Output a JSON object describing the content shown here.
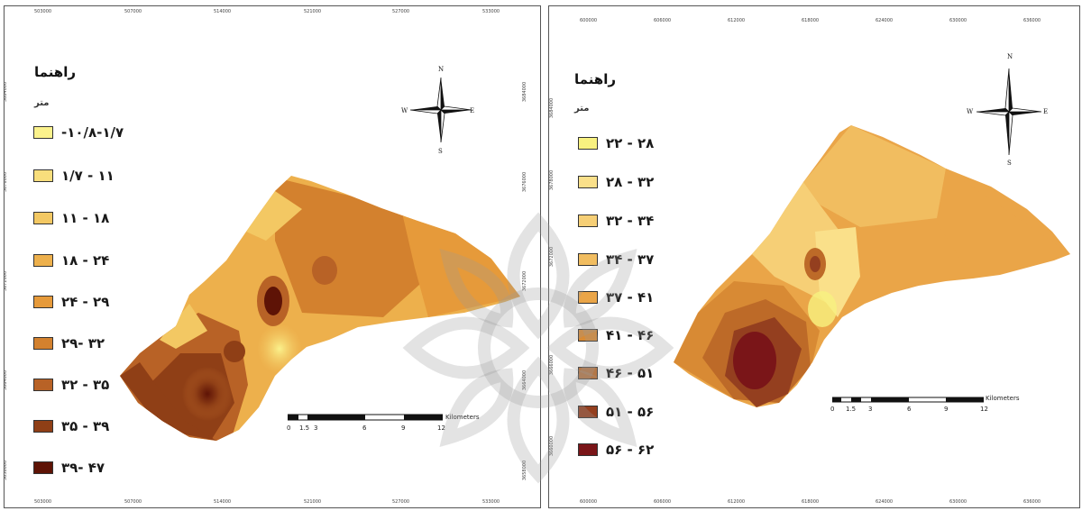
{
  "panels": [
    {
      "id": "left",
      "legend_title": "راهنما",
      "unit": "متر",
      "legend": [
        {
          "label": "-۱۰/۸-۱/۷",
          "color": "#fbf28c"
        },
        {
          "label": "۱/۷ - ۱۱",
          "color": "#f8de7c"
        },
        {
          "label": "۱۱ - ۱۸",
          "color": "#f3c863"
        },
        {
          "label": "۱۸ - ۲۴",
          "color": "#edb04c"
        },
        {
          "label": "۲۴ - ۲۹",
          "color": "#e69a3a"
        },
        {
          "label": "۲۹- ۳۲",
          "color": "#d3812e"
        },
        {
          "label": "۳۲ - ۳۵",
          "color": "#b86226"
        },
        {
          "label": "۳۵ - ۳۹",
          "color": "#8f3f16"
        },
        {
          "label": "۳۹- ۴۷",
          "color": "#5e1306"
        }
      ],
      "x_ticks": [
        "503000",
        "507000",
        "514000",
        "521000",
        "527000",
        "533000"
      ],
      "y_ticks": [
        "3684000",
        "3676000",
        "3672000",
        "3664000",
        "3658000"
      ],
      "scale_labels": [
        "0",
        "1.5",
        "3",
        "6",
        "9",
        "12"
      ],
      "scale_unit": "Kilometers",
      "compass": {
        "n": "N",
        "s": "S",
        "e": "E",
        "w": "W"
      }
    },
    {
      "id": "right",
      "legend_title": "راهنما",
      "unit": "متر",
      "legend": [
        {
          "label": "۲۲ - ۲۸",
          "color": "#f8f180"
        },
        {
          "label": "۲۸ - ۳۲",
          "color": "#fae08a"
        },
        {
          "label": "۳۲ - ۳۴",
          "color": "#f6cf76"
        },
        {
          "label": "۳۴ - ۳۷",
          "color": "#f1bd60"
        },
        {
          "label": "۳۷ - ۴۱",
          "color": "#eaa548"
        },
        {
          "label": "۴۱ - ۴۶",
          "color": "#d88a34"
        },
        {
          "label": "۴۶ - ۵۱",
          "color": "#bd6a28"
        },
        {
          "label": "۵۱ - ۵۶",
          "color": "#943f1f"
        },
        {
          "label": "۵۶ - ۶۲",
          "color": "#7a1518"
        }
      ],
      "x_ticks": [
        "600000",
        "606000",
        "612000",
        "618000",
        "624000",
        "630000",
        "636000"
      ],
      "y_ticks": [
        "3684000",
        "3678000",
        "3672000",
        "3666000",
        "3660000"
      ],
      "scale_labels": [
        "0",
        "1.5",
        "3",
        "6",
        "9",
        "12"
      ],
      "scale_unit": "Kilometers",
      "compass": {
        "n": "N",
        "s": "S",
        "e": "E",
        "w": "W"
      }
    }
  ]
}
